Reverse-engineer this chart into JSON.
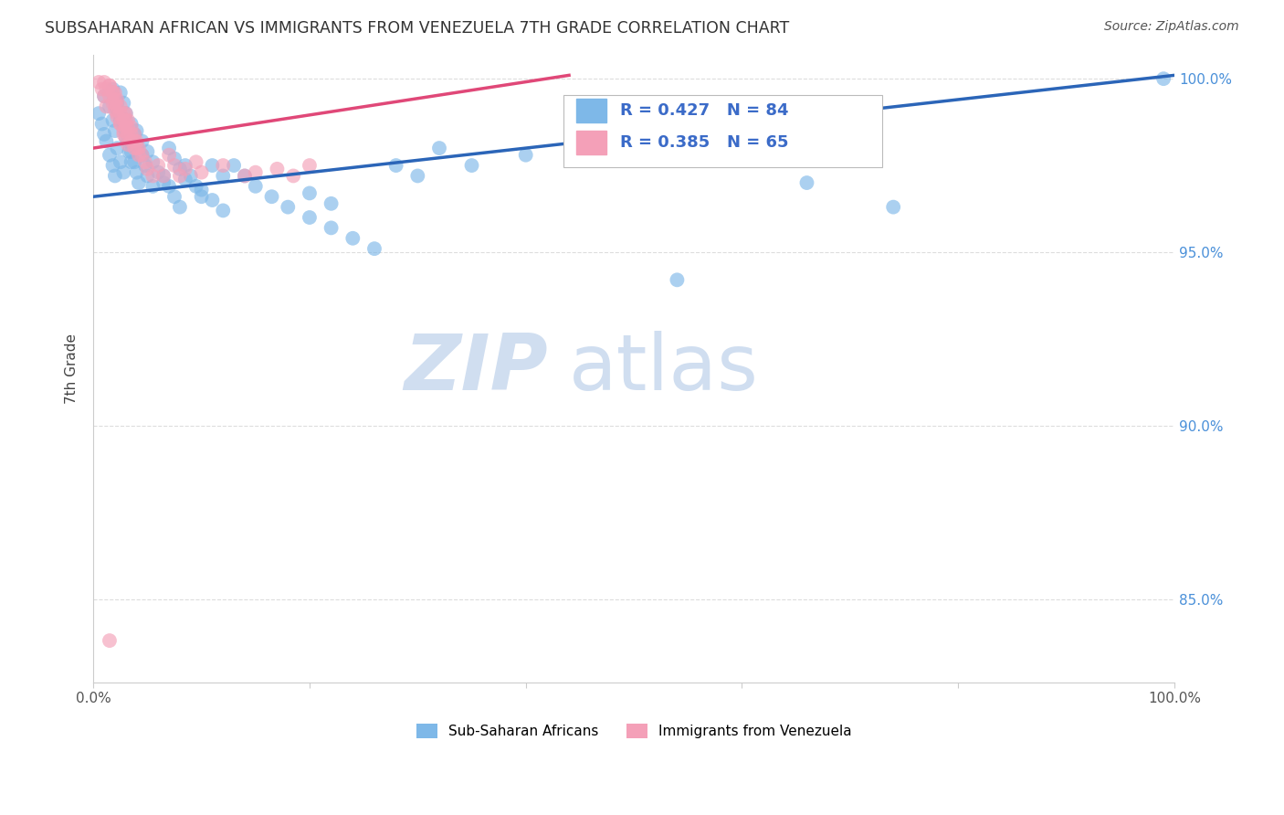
{
  "title": "SUBSAHARAN AFRICAN VS IMMIGRANTS FROM VENEZUELA 7TH GRADE CORRELATION CHART",
  "source": "Source: ZipAtlas.com",
  "ylabel": "7th Grade",
  "xlim": [
    0.0,
    1.0
  ],
  "ylim": [
    0.826,
    1.007
  ],
  "yticks": [
    0.85,
    0.9,
    0.95,
    1.0
  ],
  "ytick_labels": [
    "85.0%",
    "90.0%",
    "95.0%",
    "100.0%"
  ],
  "xtick_labels": [
    "0.0%",
    "",
    "",
    "",
    "",
    "100.0%"
  ],
  "blue_color": "#7EB8E8",
  "pink_color": "#F4A0B8",
  "blue_line_color": "#2B65B8",
  "pink_line_color": "#E04878",
  "legend_text_color": "#3B6BC8",
  "watermark_color": "#D0DEF0",
  "R_blue": 0.427,
  "N_blue": 84,
  "R_pink": 0.385,
  "N_pink": 65,
  "blue_scatter_x": [
    0.005,
    0.008,
    0.01,
    0.012,
    0.015,
    0.018,
    0.02,
    0.022,
    0.025,
    0.028,
    0.01,
    0.015,
    0.018,
    0.02,
    0.022,
    0.025,
    0.028,
    0.03,
    0.033,
    0.035,
    0.018,
    0.02,
    0.022,
    0.025,
    0.03,
    0.032,
    0.035,
    0.038,
    0.04,
    0.042,
    0.025,
    0.028,
    0.03,
    0.035,
    0.038,
    0.04,
    0.045,
    0.048,
    0.05,
    0.055,
    0.04,
    0.045,
    0.05,
    0.055,
    0.06,
    0.065,
    0.07,
    0.075,
    0.08,
    0.085,
    0.065,
    0.07,
    0.075,
    0.08,
    0.085,
    0.09,
    0.095,
    0.1,
    0.11,
    0.12,
    0.1,
    0.11,
    0.12,
    0.13,
    0.14,
    0.15,
    0.165,
    0.18,
    0.2,
    0.22,
    0.2,
    0.22,
    0.24,
    0.26,
    0.28,
    0.3,
    0.32,
    0.35,
    0.4,
    0.45,
    0.54,
    0.66,
    0.74,
    0.99
  ],
  "blue_scatter_y": [
    0.99,
    0.987,
    0.984,
    0.982,
    0.978,
    0.975,
    0.972,
    0.98,
    0.976,
    0.973,
    0.995,
    0.992,
    0.988,
    0.985,
    0.993,
    0.989,
    0.986,
    0.983,
    0.979,
    0.976,
    0.997,
    0.994,
    0.991,
    0.988,
    0.985,
    0.982,
    0.979,
    0.976,
    0.973,
    0.97,
    0.996,
    0.993,
    0.99,
    0.987,
    0.984,
    0.981,
    0.978,
    0.975,
    0.972,
    0.969,
    0.985,
    0.982,
    0.979,
    0.976,
    0.973,
    0.97,
    0.98,
    0.977,
    0.974,
    0.971,
    0.972,
    0.969,
    0.966,
    0.963,
    0.975,
    0.972,
    0.969,
    0.966,
    0.975,
    0.972,
    0.968,
    0.965,
    0.962,
    0.975,
    0.972,
    0.969,
    0.966,
    0.963,
    0.967,
    0.964,
    0.96,
    0.957,
    0.954,
    0.951,
    0.975,
    0.972,
    0.98,
    0.975,
    0.978,
    0.981,
    0.942,
    0.97,
    0.963,
    1.0
  ],
  "pink_scatter_x": [
    0.005,
    0.008,
    0.01,
    0.012,
    0.015,
    0.018,
    0.02,
    0.022,
    0.025,
    0.028,
    0.01,
    0.012,
    0.015,
    0.018,
    0.02,
    0.022,
    0.025,
    0.028,
    0.03,
    0.032,
    0.015,
    0.018,
    0.02,
    0.022,
    0.025,
    0.028,
    0.03,
    0.032,
    0.035,
    0.038,
    0.02,
    0.022,
    0.025,
    0.028,
    0.03,
    0.032,
    0.035,
    0.038,
    0.04,
    0.042,
    0.03,
    0.032,
    0.035,
    0.038,
    0.04,
    0.042,
    0.045,
    0.048,
    0.05,
    0.055,
    0.06,
    0.065,
    0.07,
    0.075,
    0.08,
    0.085,
    0.095,
    0.1,
    0.12,
    0.14,
    0.15,
    0.17,
    0.185,
    0.2,
    0.015
  ],
  "pink_scatter_y": [
    0.999,
    0.997,
    0.995,
    0.992,
    0.998,
    0.996,
    0.993,
    0.99,
    0.987,
    0.984,
    0.999,
    0.997,
    0.995,
    0.993,
    0.991,
    0.989,
    0.987,
    0.985,
    0.983,
    0.981,
    0.998,
    0.996,
    0.994,
    0.992,
    0.99,
    0.988,
    0.986,
    0.984,
    0.982,
    0.98,
    0.996,
    0.994,
    0.992,
    0.99,
    0.988,
    0.986,
    0.984,
    0.982,
    0.98,
    0.978,
    0.99,
    0.988,
    0.986,
    0.984,
    0.982,
    0.98,
    0.978,
    0.976,
    0.974,
    0.972,
    0.975,
    0.972,
    0.978,
    0.975,
    0.972,
    0.974,
    0.976,
    0.973,
    0.975,
    0.972,
    0.973,
    0.974,
    0.972,
    0.975,
    0.838
  ],
  "blue_line_x": [
    0.0,
    1.0
  ],
  "blue_line_y": [
    0.966,
    1.001
  ],
  "pink_line_x": [
    0.0,
    0.44
  ],
  "pink_line_y": [
    0.98,
    1.001
  ],
  "background_color": "#FFFFFF",
  "grid_color": "#DDDDDD",
  "right_tick_color": "#4A90D9"
}
